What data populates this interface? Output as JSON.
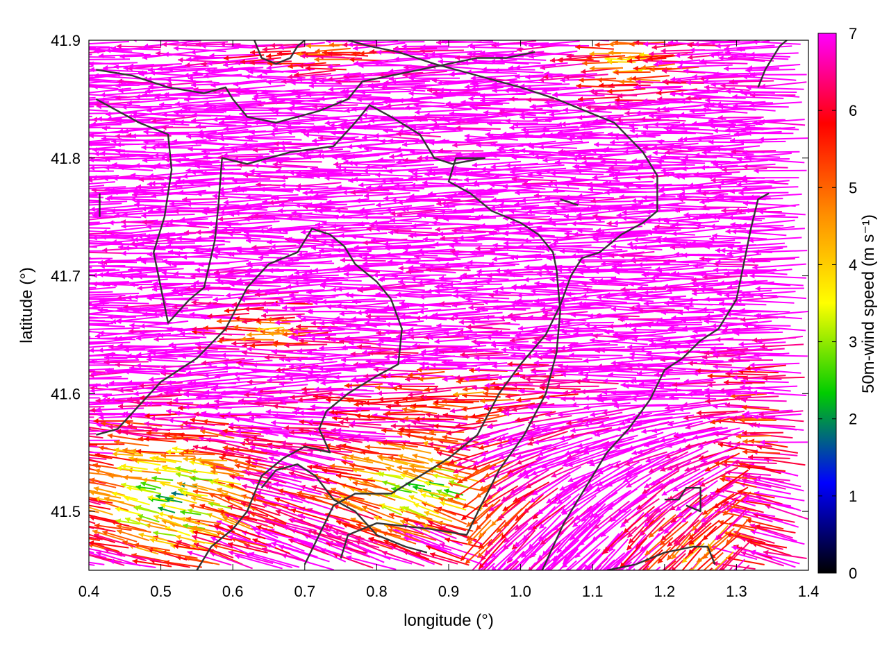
{
  "chart_data": {
    "type": "vector-field",
    "xlabel": "longitude (°)",
    "ylabel": "latitude (°)",
    "colorbar_label": "50m-wind speed (m s⁻¹)",
    "xlim": [
      0.4,
      1.4
    ],
    "ylim": [
      41.45,
      41.9
    ],
    "xticks": [
      "0.4",
      "0.5",
      "0.6",
      "0.7",
      "0.8",
      "0.9",
      "1.0",
      "1.1",
      "1.2",
      "1.3",
      "1.4"
    ],
    "yticks": [
      "41.5",
      "41.6",
      "41.7",
      "41.8",
      "41.9"
    ],
    "cbticks": [
      "0",
      "1",
      "2",
      "3",
      "4",
      "5",
      "6",
      "7"
    ],
    "crange": [
      0,
      7
    ],
    "colormap": [
      "#000000",
      "#0000ff",
      "#00cc00",
      "#ffff00",
      "#ff8c00",
      "#ff0000",
      "#ff00ff"
    ],
    "contour_color": "#333333",
    "dominant_direction": "westward",
    "contours": [
      [
        [
          0.41,
          41.85
        ],
        [
          0.47,
          41.83
        ],
        [
          0.51,
          41.82
        ],
        [
          0.515,
          41.79
        ],
        [
          0.505,
          41.75
        ],
        [
          0.49,
          41.72
        ],
        [
          0.5,
          41.69
        ],
        [
          0.51,
          41.66
        ],
        [
          0.54,
          41.68
        ],
        [
          0.56,
          41.69
        ],
        [
          0.575,
          41.73
        ],
        [
          0.58,
          41.76
        ],
        [
          0.585,
          41.8
        ],
        [
          0.62,
          41.795
        ],
        [
          0.68,
          41.805
        ],
        [
          0.74,
          41.81
        ],
        [
          0.77,
          41.83
        ],
        [
          0.79,
          41.845
        ],
        [
          0.82,
          41.835
        ],
        [
          0.86,
          41.82
        ],
        [
          0.88,
          41.8
        ],
        [
          0.905,
          41.795
        ],
        [
          0.95,
          41.8
        ],
        [
          0.91,
          41.8
        ],
        [
          0.9,
          41.78
        ],
        [
          0.93,
          41.77
        ],
        [
          0.96,
          41.755
        ],
        [
          1.0,
          41.745
        ],
        [
          1.025,
          41.735
        ],
        [
          1.045,
          41.72
        ],
        [
          1.05,
          41.705
        ],
        [
          1.055,
          41.67
        ],
        [
          1.05,
          41.635
        ],
        [
          1.035,
          41.6
        ],
        [
          1.005,
          41.565
        ],
        [
          0.97,
          41.535
        ],
        [
          0.945,
          41.505
        ],
        [
          0.925,
          41.48
        ],
        [
          0.875,
          41.485
        ],
        [
          0.8,
          41.49
        ],
        [
          0.76,
          41.48
        ],
        [
          0.75,
          41.46
        ]
      ],
      [
        [
          0.41,
          41.565
        ],
        [
          0.44,
          41.57
        ],
        [
          0.47,
          41.59
        ],
        [
          0.5,
          41.61
        ],
        [
          0.55,
          41.63
        ],
        [
          0.59,
          41.655
        ],
        [
          0.62,
          41.69
        ],
        [
          0.65,
          41.71
        ],
        [
          0.69,
          41.72
        ],
        [
          0.71,
          41.74
        ],
        [
          0.735,
          41.735
        ],
        [
          0.755,
          41.725
        ],
        [
          0.77,
          41.71
        ],
        [
          0.8,
          41.695
        ],
        [
          0.82,
          41.68
        ],
        [
          0.835,
          41.655
        ],
        [
          0.83,
          41.625
        ],
        [
          0.8,
          41.615
        ],
        [
          0.76,
          41.6
        ],
        [
          0.73,
          41.585
        ],
        [
          0.72,
          41.57
        ],
        [
          0.735,
          41.55
        ],
        [
          0.7,
          41.555
        ],
        [
          0.67,
          41.545
        ],
        [
          0.64,
          41.53
        ],
        [
          0.62,
          41.5
        ],
        [
          0.6,
          41.485
        ],
        [
          0.57,
          41.47
        ],
        [
          0.55,
          41.45
        ]
      ],
      [
        [
          0.64,
          41.52
        ],
        [
          0.66,
          41.535
        ],
        [
          0.69,
          41.54
        ],
        [
          0.715,
          41.53
        ],
        [
          0.74,
          41.51
        ],
        [
          0.77,
          41.5
        ],
        [
          0.8,
          41.48
        ],
        [
          0.84,
          41.47
        ],
        [
          0.87,
          41.465
        ]
      ],
      [
        [
          0.7,
          41.455
        ],
        [
          0.72,
          41.48
        ],
        [
          0.74,
          41.505
        ],
        [
          0.77,
          41.515
        ],
        [
          0.82,
          41.515
        ],
        [
          0.86,
          41.53
        ],
        [
          0.9,
          41.545
        ],
        [
          0.94,
          41.565
        ],
        [
          0.97,
          41.6
        ],
        [
          1.0,
          41.625
        ],
        [
          1.035,
          41.65
        ],
        [
          1.055,
          41.675
        ],
        [
          1.07,
          41.7
        ],
        [
          1.085,
          41.715
        ],
        [
          1.11,
          41.72
        ],
        [
          1.14,
          41.735
        ],
        [
          1.17,
          41.745
        ],
        [
          1.19,
          41.755
        ],
        [
          1.19,
          41.785
        ],
        [
          1.17,
          41.805
        ],
        [
          1.13,
          41.83
        ],
        [
          1.09,
          41.84
        ],
        [
          1.05,
          41.85
        ],
        [
          1.0,
          41.86
        ],
        [
          0.94,
          41.87
        ],
        [
          0.88,
          41.88
        ],
        [
          0.83,
          41.89
        ],
        [
          0.79,
          41.895
        ],
        [
          0.76,
          41.9
        ]
      ],
      [
        [
          0.41,
          41.875
        ],
        [
          0.46,
          41.87
        ],
        [
          0.51,
          41.86
        ],
        [
          0.56,
          41.855
        ],
        [
          0.59,
          41.86
        ],
        [
          0.6,
          41.85
        ],
        [
          0.62,
          41.835
        ],
        [
          0.66,
          41.83
        ],
        [
          0.69,
          41.835
        ],
        [
          0.72,
          41.84
        ],
        [
          0.76,
          41.85
        ],
        [
          0.78,
          41.865
        ],
        [
          0.82,
          41.87
        ],
        [
          0.86,
          41.875
        ],
        [
          0.9,
          41.88
        ],
        [
          0.94,
          41.885
        ],
        [
          0.98,
          41.885
        ],
        [
          1.02,
          41.89
        ]
      ],
      [
        [
          0.63,
          41.9
        ],
        [
          0.64,
          41.885
        ],
        [
          0.66,
          41.88
        ],
        [
          0.68,
          41.885
        ],
        [
          0.69,
          41.895
        ],
        [
          0.7,
          41.9
        ]
      ],
      [
        [
          1.03,
          41.45
        ],
        [
          1.06,
          41.49
        ],
        [
          1.09,
          41.52
        ],
        [
          1.12,
          41.55
        ],
        [
          1.15,
          41.57
        ],
        [
          1.18,
          41.595
        ],
        [
          1.2,
          41.62
        ],
        [
          1.225,
          41.63
        ],
        [
          1.25,
          41.645
        ],
        [
          1.275,
          41.655
        ],
        [
          1.3,
          41.68
        ],
        [
          1.31,
          41.71
        ],
        [
          1.32,
          41.74
        ],
        [
          1.33,
          41.765
        ],
        [
          1.345,
          41.77
        ]
      ],
      [
        [
          1.12,
          41.45
        ],
        [
          1.16,
          41.455
        ],
        [
          1.2,
          41.465
        ],
        [
          1.24,
          41.47
        ],
        [
          1.26,
          41.47
        ],
        [
          1.27,
          41.455
        ]
      ],
      [
        [
          1.2,
          41.51
        ],
        [
          1.22,
          41.51
        ],
        [
          1.23,
          41.52
        ],
        [
          1.25,
          41.52
        ],
        [
          1.25,
          41.5
        ],
        [
          1.23,
          41.505
        ]
      ],
      [
        [
          1.33,
          41.86
        ],
        [
          1.34,
          41.875
        ],
        [
          1.35,
          41.885
        ],
        [
          1.36,
          41.895
        ],
        [
          1.37,
          41.9
        ]
      ],
      [
        [
          0.415,
          41.77
        ],
        [
          0.415,
          41.75
        ]
      ],
      [
        [
          1.055,
          41.765
        ],
        [
          1.08,
          41.76
        ]
      ]
    ]
  }
}
